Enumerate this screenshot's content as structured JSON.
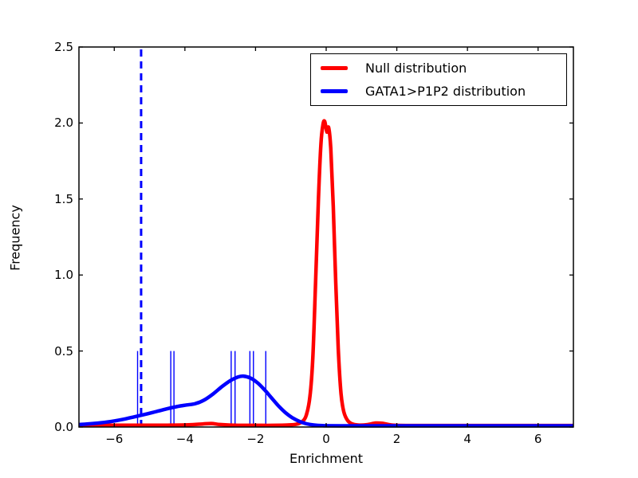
{
  "figure": {
    "background": "#ffffff",
    "axis_color": "#000000",
    "text_color": "#000000"
  },
  "chart_data": {
    "type": "line",
    "title": "",
    "xlabel": "Enrichment",
    "ylabel": "Frequency",
    "xlim": [
      -7,
      7
    ],
    "ylim": [
      0,
      2.5
    ],
    "grid": false,
    "legend_position": "upper right",
    "x_ticks": [
      -6,
      -4,
      -2,
      0,
      2,
      4,
      6
    ],
    "x_tick_labels": [
      "−6",
      "−4",
      "−2",
      "0",
      "2",
      "4",
      "6"
    ],
    "y_ticks": [
      0,
      0.5,
      1,
      1.5,
      2,
      2.5
    ],
    "y_tick_labels": [
      "0.0",
      "0.5",
      "1.0",
      "1.5",
      "2.0",
      "2.5"
    ],
    "series": [
      {
        "name": "Null distribution",
        "color": "#ff0000",
        "line_width": 4.5,
        "peak": {
          "x": 0.0,
          "y": 2.01
        },
        "points": [
          [
            -7,
            0.012
          ],
          [
            -5.5,
            0.012
          ],
          [
            -4.5,
            0.012
          ],
          [
            -3.9,
            0.014
          ],
          [
            -3.5,
            0.02
          ],
          [
            -3.25,
            0.023
          ],
          [
            -3.0,
            0.016
          ],
          [
            -2.6,
            0.012
          ],
          [
            -2.0,
            0.011
          ],
          [
            -1.5,
            0.011
          ],
          [
            -1.1,
            0.013
          ],
          [
            -0.85,
            0.018
          ],
          [
            -0.68,
            0.035
          ],
          [
            -0.56,
            0.08
          ],
          [
            -0.46,
            0.2
          ],
          [
            -0.38,
            0.45
          ],
          [
            -0.3,
            0.95
          ],
          [
            -0.22,
            1.5
          ],
          [
            -0.15,
            1.86
          ],
          [
            -0.09,
            1.99
          ],
          [
            -0.04,
            2.01
          ],
          [
            0.02,
            1.94
          ],
          [
            0.07,
            1.97
          ],
          [
            0.13,
            1.83
          ],
          [
            0.2,
            1.45
          ],
          [
            0.27,
            0.95
          ],
          [
            0.34,
            0.52
          ],
          [
            0.42,
            0.22
          ],
          [
            0.5,
            0.1
          ],
          [
            0.6,
            0.045
          ],
          [
            0.72,
            0.022
          ],
          [
            0.9,
            0.013
          ],
          [
            1.15,
            0.015
          ],
          [
            1.4,
            0.026
          ],
          [
            1.6,
            0.024
          ],
          [
            1.85,
            0.013
          ],
          [
            2.3,
            0.01
          ],
          [
            3.5,
            0.01
          ],
          [
            5,
            0.01
          ],
          [
            7,
            0.01
          ]
        ]
      },
      {
        "name": "GATA1>P1P2 distribution",
        "color": "#0000ff",
        "line_width": 4.5,
        "peak": {
          "x": -2.45,
          "y": 0.335
        },
        "points": [
          [
            -7,
            0.016
          ],
          [
            -6.6,
            0.023
          ],
          [
            -6.2,
            0.033
          ],
          [
            -5.8,
            0.048
          ],
          [
            -5.45,
            0.066
          ],
          [
            -5.1,
            0.085
          ],
          [
            -4.8,
            0.102
          ],
          [
            -4.5,
            0.12
          ],
          [
            -4.2,
            0.136
          ],
          [
            -3.95,
            0.145
          ],
          [
            -3.7,
            0.154
          ],
          [
            -3.45,
            0.178
          ],
          [
            -3.2,
            0.218
          ],
          [
            -2.95,
            0.266
          ],
          [
            -2.7,
            0.307
          ],
          [
            -2.5,
            0.329
          ],
          [
            -2.35,
            0.335
          ],
          [
            -2.15,
            0.323
          ],
          [
            -1.95,
            0.292
          ],
          [
            -1.75,
            0.246
          ],
          [
            -1.55,
            0.192
          ],
          [
            -1.35,
            0.139
          ],
          [
            -1.15,
            0.094
          ],
          [
            -0.95,
            0.06
          ],
          [
            -0.75,
            0.036
          ],
          [
            -0.55,
            0.021
          ],
          [
            -0.35,
            0.013
          ],
          [
            -0.1,
            0.009
          ],
          [
            0.4,
            0.008
          ],
          [
            1.5,
            0.008
          ],
          [
            3,
            0.008
          ],
          [
            5,
            0.008
          ],
          [
            7,
            0.008
          ]
        ]
      }
    ],
    "rug": {
      "color": "#0000ff",
      "height": 0.5,
      "line_width": 1.4,
      "x_values": [
        -5.34,
        -4.4,
        -4.31,
        -2.69,
        -2.58,
        -2.16,
        -2.06,
        -1.71
      ]
    },
    "vline": {
      "x": -5.24,
      "color": "#0000ff",
      "style": "dashed",
      "line_width": 3,
      "y_span": [
        0,
        2.5
      ]
    }
  },
  "legend": {
    "entries": [
      {
        "label": "Null distribution",
        "color": "#ff0000"
      },
      {
        "label": "GATA1>P1P2 distribution",
        "color": "#0000ff"
      }
    ]
  }
}
